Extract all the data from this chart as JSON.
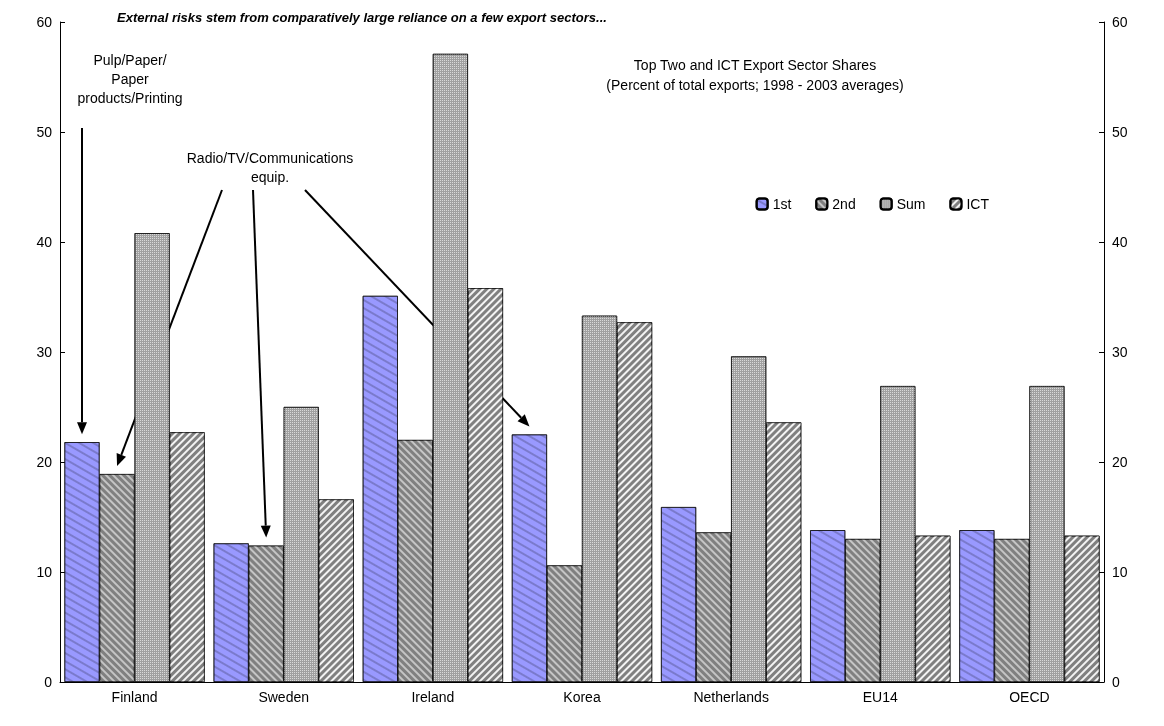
{
  "chart_data": {
    "type": "bar",
    "title": "External risks stem from comparatively large reliance on a few export sectors...",
    "subtitle": "Top Two and ICT Export Sector Shares\n(Percent of total exports; 1998 - 2003 averages)",
    "categories": [
      "Finland",
      "Sweden",
      "Ireland",
      "Korea",
      "Netherlands",
      "EU14",
      "OECD"
    ],
    "series": [
      {
        "name": "1st",
        "color": "#9999ff",
        "values": [
          21.8,
          12.6,
          35.1,
          22.5,
          15.9,
          13.8,
          13.8
        ]
      },
      {
        "name": "2nd",
        "color": "#808080",
        "values": [
          18.9,
          12.4,
          22.0,
          10.6,
          13.6,
          13.0,
          13.0
        ]
      },
      {
        "name": "Sum",
        "color": "#a0a0a0",
        "values": [
          40.8,
          25.0,
          57.1,
          33.3,
          29.6,
          26.9,
          26.9
        ]
      },
      {
        "name": "ICT",
        "color": "#808080",
        "values": [
          22.7,
          16.6,
          35.8,
          32.7,
          23.6,
          13.3,
          13.3
        ]
      }
    ],
    "ylim": [
      0,
      60
    ],
    "yticks": [
      0,
      10,
      20,
      30,
      40,
      50,
      60
    ],
    "y2lim": [
      0,
      60
    ],
    "y2ticks": [
      0,
      10,
      20,
      30,
      40,
      50,
      60
    ],
    "annotations": [
      "Pulp/Paper/\nPaper\nproducts/Printing",
      "Radio/TV/Communications\nequip."
    ],
    "grid": false,
    "legend": "top right"
  }
}
